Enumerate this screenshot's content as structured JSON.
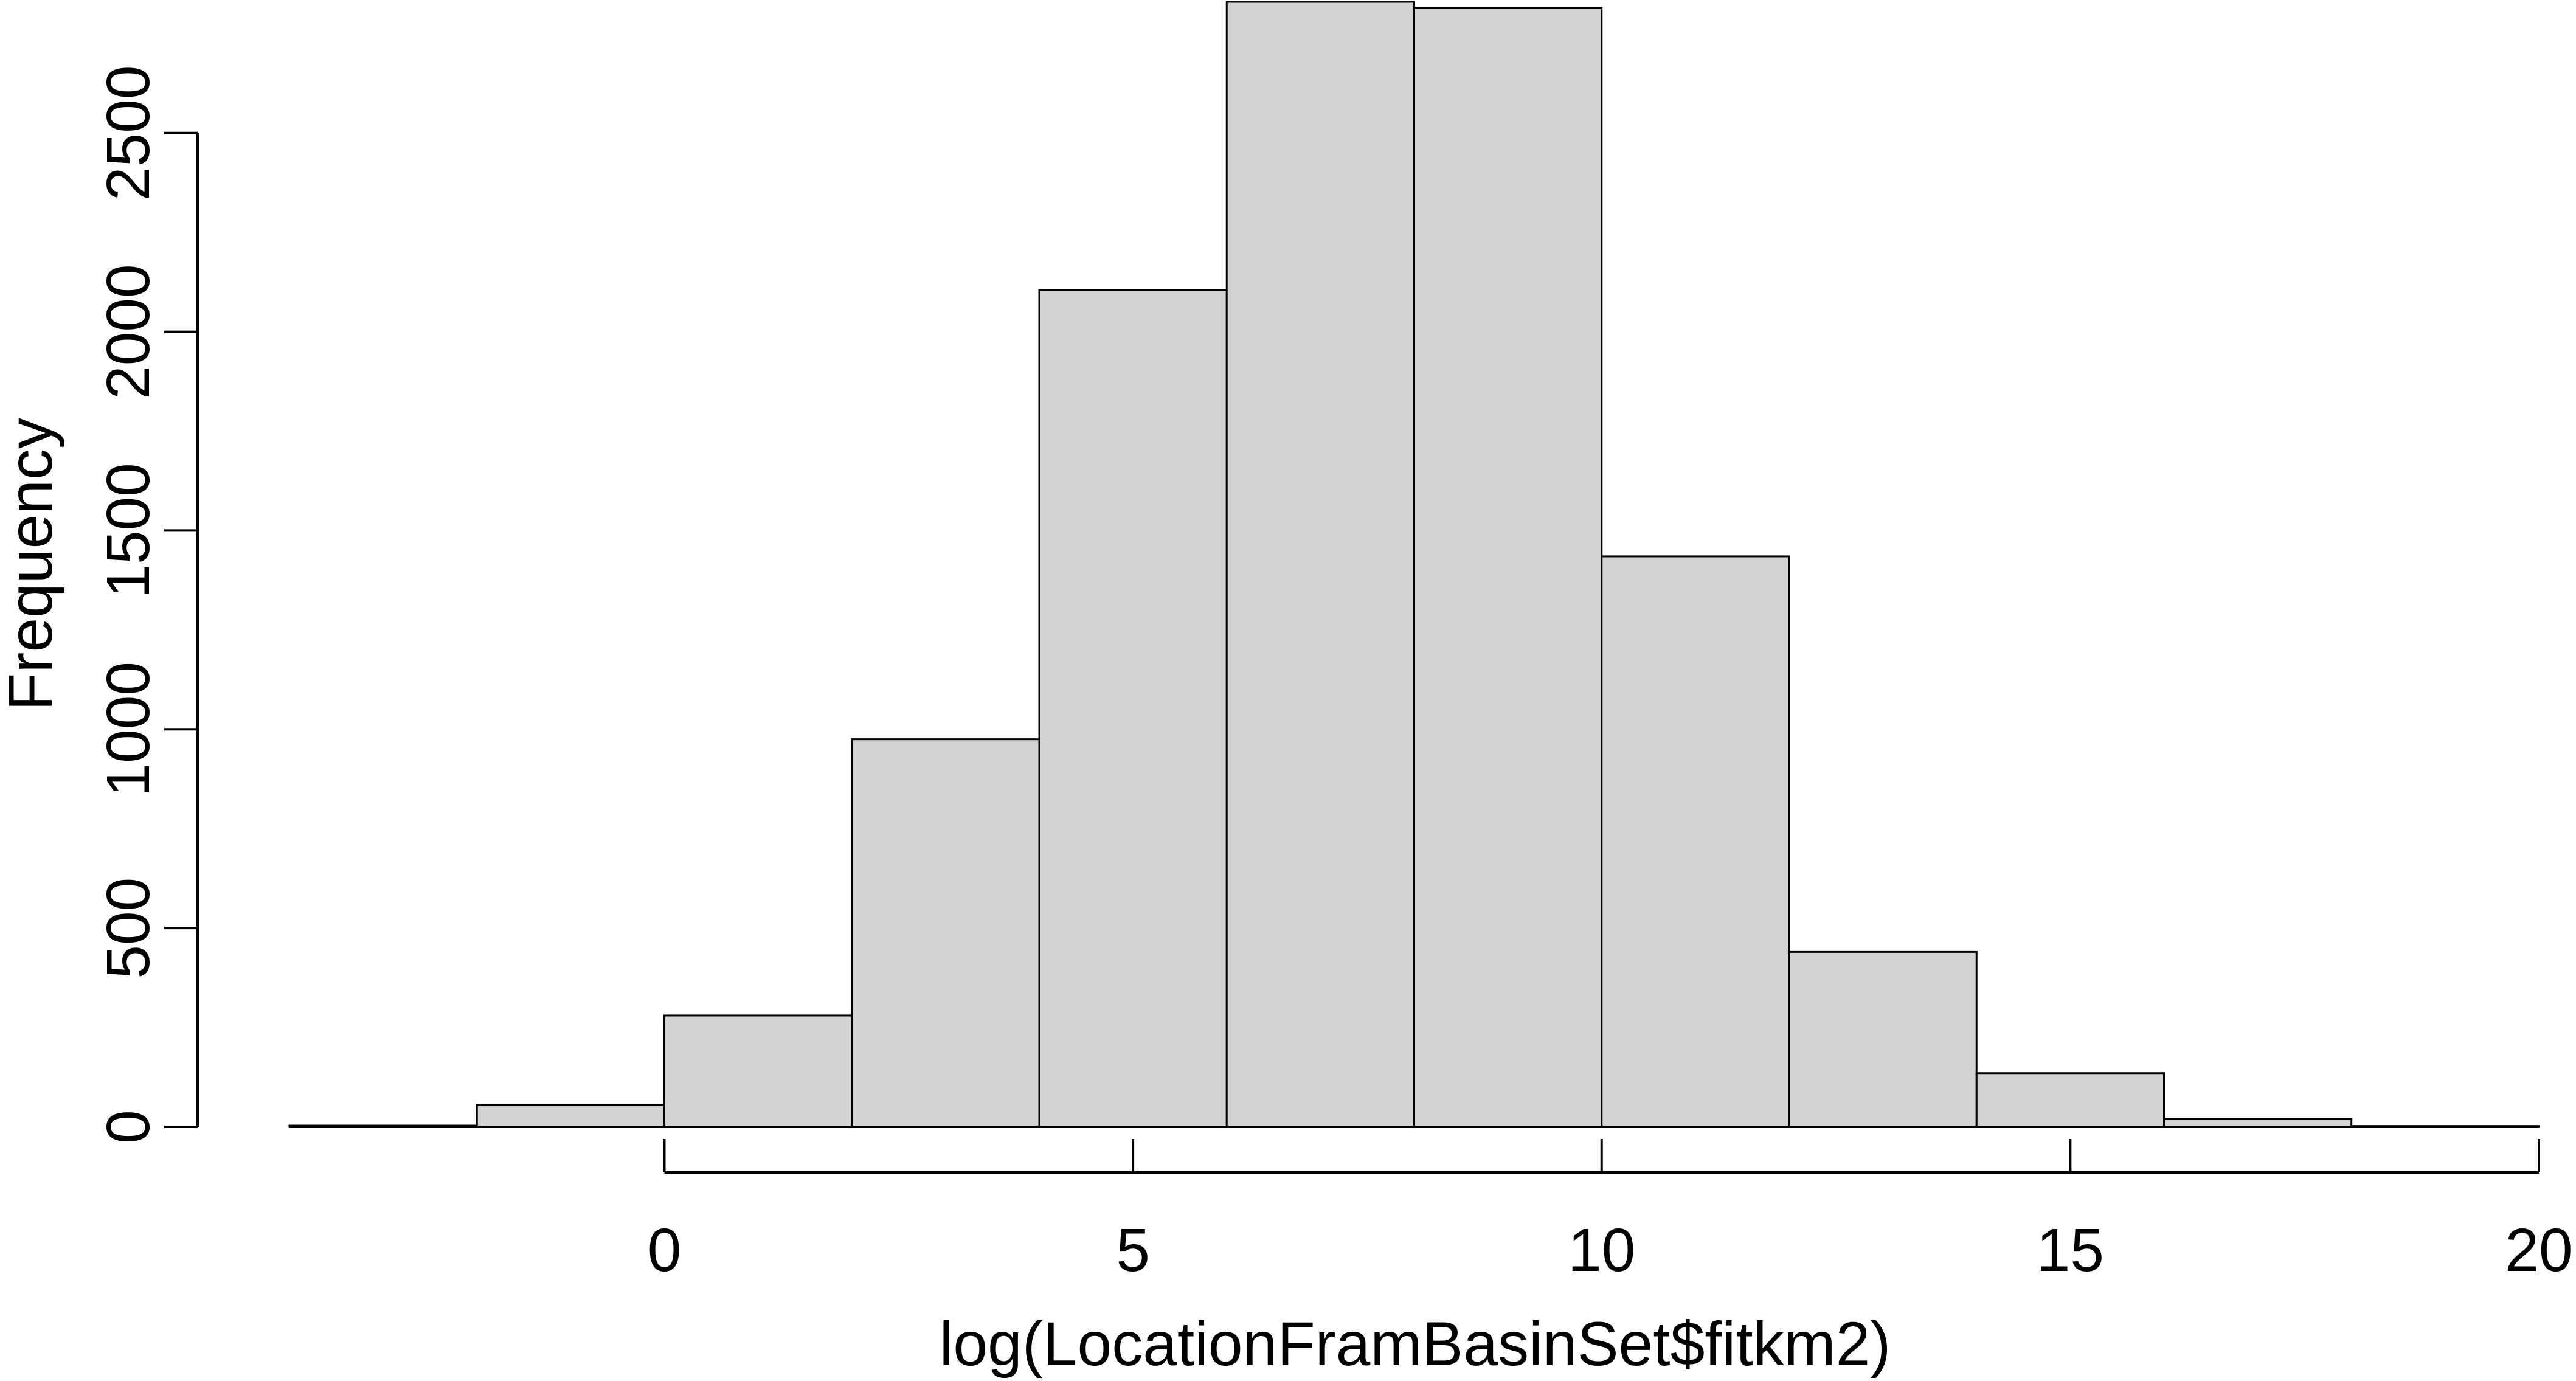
{
  "chart_data": {
    "type": "bar",
    "histogram": true,
    "title": "",
    "xlabel": "log(LocationFramBasinSet$fitkm2)",
    "ylabel": "Frequency",
    "bin_edges": [
      -4,
      -2,
      0,
      2,
      4,
      6,
      8,
      10,
      12,
      14,
      16,
      18,
      20
    ],
    "values": [
      3,
      55,
      280,
      975,
      2105,
      2830,
      2815,
      1435,
      440,
      135,
      20,
      2
    ],
    "xlim": [
      -4,
      20
    ],
    "ylim": [
      0,
      2830
    ],
    "x_ticks": [
      0,
      5,
      10,
      15,
      20
    ],
    "x_tick_labels": [
      "0",
      "5",
      "10",
      "15",
      "20"
    ],
    "y_ticks": [
      0,
      500,
      1000,
      1500,
      2000,
      2500
    ],
    "y_tick_labels": [
      "0",
      "500",
      "1000",
      "1500",
      "2000",
      "2500"
    ],
    "bar_fill": "#d3d3d3",
    "bar_stroke": "#000000",
    "grid": false,
    "legend": "none"
  }
}
